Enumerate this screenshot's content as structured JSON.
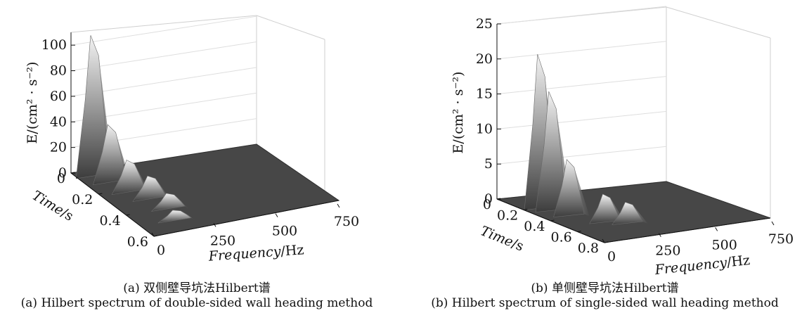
{
  "chart_data": [
    {
      "type": "surface",
      "caption_cn": "(a) 双侧壁导坑法Hilbert谱",
      "caption_en": "(a) Hilbert spectrum of double-sided wall heading method",
      "z_label": "E/(cm² · s⁻²)",
      "z_ticks": [
        "0",
        "20",
        "40",
        "60",
        "80",
        "100"
      ],
      "time_label_main": "Time",
      "time_label_unit": "/s",
      "time_ticks": [
        "0",
        "0.2",
        "0.4",
        "0.6"
      ],
      "freq_label_main": "Frequency",
      "freq_label_unit": "/Hz",
      "freq_ticks": [
        "0",
        "250",
        "500",
        "750"
      ],
      "zlim": [
        0,
        110
      ],
      "time_range": [
        0,
        0.6
      ],
      "freq_range": [
        0,
        750
      ],
      "peaks": [
        {
          "time": 0.05,
          "freq": 60,
          "energy": 110
        },
        {
          "time": 0.12,
          "freq": 90,
          "energy": 45
        },
        {
          "time": 0.22,
          "freq": 110,
          "energy": 25
        },
        {
          "time": 0.3,
          "freq": 150,
          "energy": 18
        },
        {
          "time": 0.4,
          "freq": 170,
          "energy": 12
        },
        {
          "time": 0.5,
          "freq": 140,
          "energy": 8
        }
      ]
    },
    {
      "type": "surface",
      "caption_cn": "(b) 单侧壁导坑法Hilbert谱",
      "caption_en": "(b) Hilbert spectrum of single-sided wall heading method",
      "z_label": "E/(cm² · s⁻²)",
      "z_ticks": [
        "0",
        "5",
        "10",
        "15",
        "20",
        "25"
      ],
      "time_label_main": "Time",
      "time_label_unit": "/s",
      "time_ticks": [
        "0",
        "0.2",
        "0.4",
        "0.6",
        "0.8"
      ],
      "freq_label_main": "Frequency",
      "freq_label_unit": "/Hz",
      "freq_ticks": [
        "0",
        "250",
        "500",
        "750"
      ],
      "zlim": [
        0,
        25
      ],
      "time_range": [
        0,
        0.8
      ],
      "freq_range": [
        0,
        750
      ],
      "peaks": [
        {
          "time": 0.2,
          "freq": 70,
          "energy": 22
        },
        {
          "time": 0.25,
          "freq": 90,
          "energy": 17
        },
        {
          "time": 0.35,
          "freq": 110,
          "energy": 8
        },
        {
          "time": 0.5,
          "freq": 180,
          "energy": 4
        },
        {
          "time": 0.55,
          "freq": 250,
          "energy": 3
        }
      ]
    }
  ]
}
